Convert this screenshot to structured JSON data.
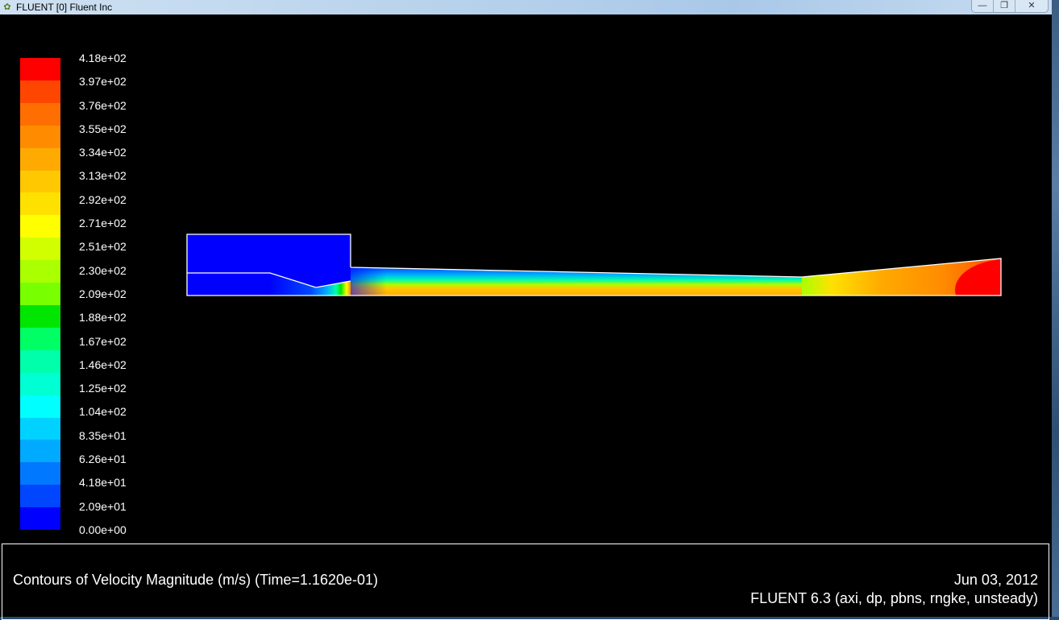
{
  "window": {
    "title": "FLUENT [0] Fluent Inc",
    "icon": "fluent-app-icon",
    "controls": {
      "minimize": "—",
      "restore": "❐",
      "close": "✕"
    }
  },
  "legend": {
    "labels": [
      "4.18e+02",
      "3.97e+02",
      "3.76e+02",
      "3.55e+02",
      "3.34e+02",
      "3.13e+02",
      "2.92e+02",
      "2.71e+02",
      "2.51e+02",
      "2.30e+02",
      "2.09e+02",
      "1.88e+02",
      "1.67e+02",
      "1.46e+02",
      "1.25e+02",
      "1.04e+02",
      "8.35e+01",
      "6.26e+01",
      "4.18e+01",
      "2.09e+01",
      "0.00e+00"
    ],
    "colors_top_to_bottom": [
      "#ff0000",
      "#ff4600",
      "#ff6e00",
      "#ff8c00",
      "#ffaa00",
      "#ffc800",
      "#ffe100",
      "#ffff00",
      "#d2ff00",
      "#aaff00",
      "#78ff00",
      "#00e600",
      "#00ff64",
      "#00ffaa",
      "#00ffd2",
      "#00ffff",
      "#00d2ff",
      "#00aaff",
      "#0078ff",
      "#0046ff",
      "#0000ff"
    ]
  },
  "footer": {
    "caption": "Contours of Velocity Magnitude (m/s)  (Time=1.1620e-01)",
    "date": "Jun 03, 2012",
    "version": "FLUENT 6.3 (axi, dp, pbns, rngke, unsteady)"
  }
}
